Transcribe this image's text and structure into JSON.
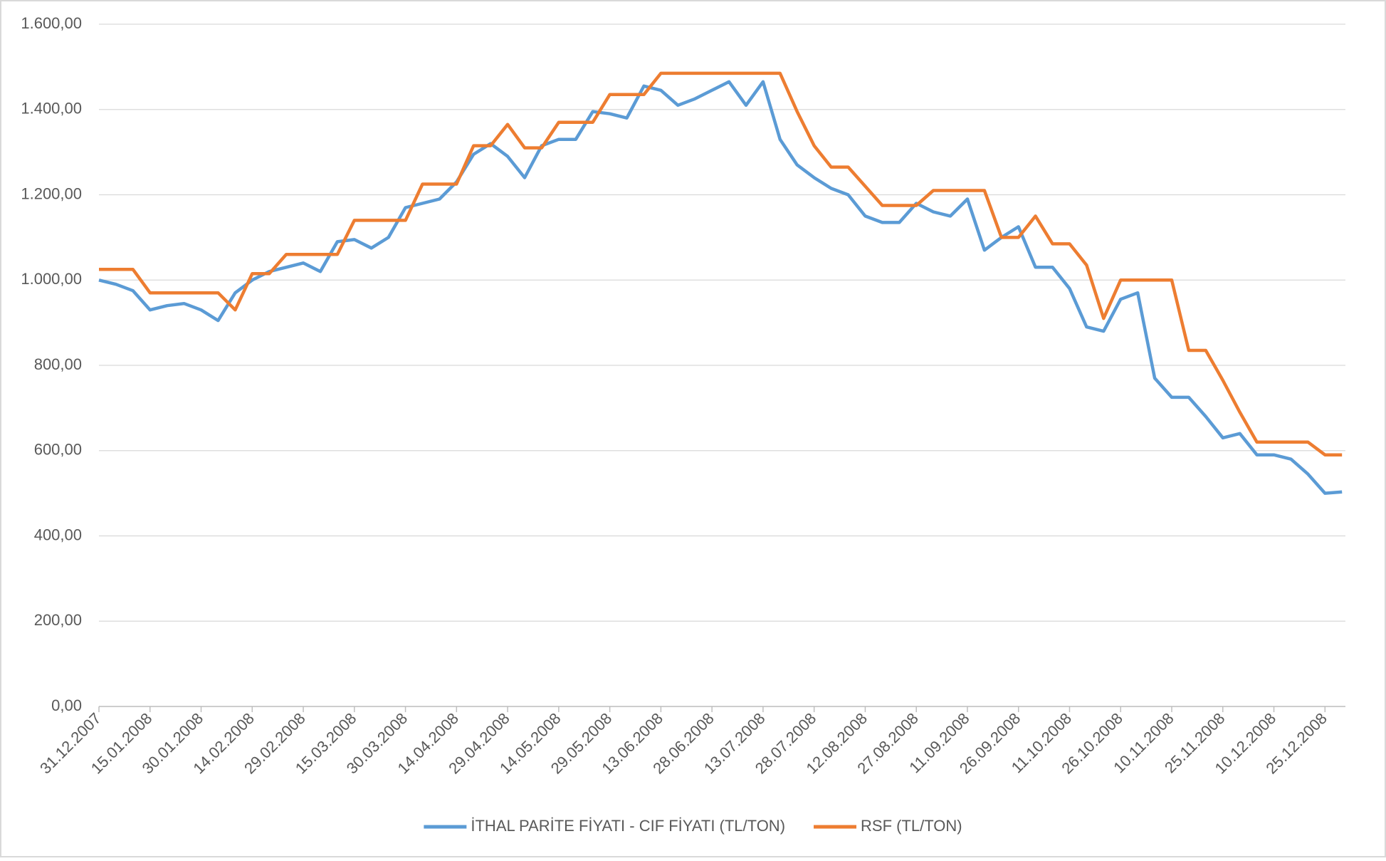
{
  "chart_data": {
    "type": "line",
    "x": [
      "31.12.2007",
      "05.01.2008",
      "10.01.2008",
      "15.01.2008",
      "20.01.2008",
      "25.01.2008",
      "30.01.2008",
      "04.02.2008",
      "09.02.2008",
      "14.02.2008",
      "19.02.2008",
      "24.02.2008",
      "29.02.2008",
      "05.03.2008",
      "10.03.2008",
      "15.03.2008",
      "20.03.2008",
      "25.03.2008",
      "30.03.2008",
      "04.04.2008",
      "09.04.2008",
      "14.04.2008",
      "19.04.2008",
      "24.04.2008",
      "29.04.2008",
      "04.05.2008",
      "09.05.2008",
      "14.05.2008",
      "19.05.2008",
      "24.05.2008",
      "29.05.2008",
      "03.06.2008",
      "08.06.2008",
      "13.06.2008",
      "18.06.2008",
      "23.06.2008",
      "28.06.2008",
      "03.07.2008",
      "08.07.2008",
      "13.07.2008",
      "18.07.2008",
      "23.07.2008",
      "28.07.2008",
      "02.08.2008",
      "07.08.2008",
      "12.08.2008",
      "17.08.2008",
      "22.08.2008",
      "27.08.2008",
      "01.09.2008",
      "06.09.2008",
      "11.09.2008",
      "16.09.2008",
      "21.09.2008",
      "26.09.2008",
      "01.10.2008",
      "06.10.2008",
      "11.10.2008",
      "16.10.2008",
      "21.10.2008",
      "26.10.2008",
      "31.10.2008",
      "05.11.2008",
      "10.11.2008",
      "15.11.2008",
      "20.11.2008",
      "25.11.2008",
      "30.11.2008",
      "05.12.2008",
      "10.12.2008",
      "15.12.2008",
      "20.12.2008",
      "25.12.2008",
      "30.12.2008"
    ],
    "series": [
      {
        "name": "İTHAL PARİTE FİYATI - CIF FİYATI (TL/TON)",
        "color": "#5b9bd5",
        "values": [
          1000,
          990,
          975,
          930,
          940,
          945,
          930,
          905,
          970,
          1000,
          1020,
          1030,
          1040,
          1020,
          1090,
          1095,
          1075,
          1100,
          1170,
          1180,
          1190,
          1230,
          1295,
          1320,
          1290,
          1240,
          1315,
          1330,
          1330,
          1395,
          1390,
          1380,
          1455,
          1445,
          1410,
          1425,
          1445,
          1465,
          1410,
          1465,
          1330,
          1270,
          1240,
          1215,
          1200,
          1150,
          1135,
          1135,
          1180,
          1160,
          1150,
          1190,
          1070,
          1100,
          1125,
          1030,
          1030,
          980,
          890,
          880,
          955,
          970,
          770,
          725,
          725,
          680,
          630,
          640,
          590,
          590,
          580,
          545,
          500,
          503
        ]
      },
      {
        "name": "RSF (TL/TON)",
        "color": "#ed7d31",
        "values": [
          1025,
          1025,
          1025,
          970,
          970,
          970,
          970,
          970,
          930,
          1015,
          1015,
          1060,
          1060,
          1060,
          1060,
          1140,
          1140,
          1140,
          1140,
          1225,
          1225,
          1225,
          1315,
          1315,
          1365,
          1310,
          1310,
          1370,
          1370,
          1370,
          1435,
          1435,
          1435,
          1485,
          1485,
          1485,
          1485,
          1485,
          1485,
          1485,
          1485,
          1395,
          1315,
          1265,
          1265,
          1220,
          1175,
          1175,
          1175,
          1210,
          1210,
          1210,
          1210,
          1100,
          1100,
          1150,
          1085,
          1085,
          1035,
          910,
          1000,
          1000,
          1000,
          1000,
          835,
          835,
          765,
          690,
          620,
          620,
          620,
          620,
          590,
          590
        ]
      }
    ],
    "xlim": [
      "31.12.2007",
      "31.12.2008"
    ],
    "xticks": [
      "31.12.2007",
      "15.01.2008",
      "30.01.2008",
      "14.02.2008",
      "29.02.2008",
      "15.03.2008",
      "30.03.2008",
      "14.04.2008",
      "29.04.2008",
      "14.05.2008",
      "29.05.2008",
      "13.06.2008",
      "28.06.2008",
      "13.07.2008",
      "28.07.2008",
      "12.08.2008",
      "27.08.2008",
      "11.09.2008",
      "26.09.2008",
      "11.10.2008",
      "26.10.2008",
      "10.11.2008",
      "25.11.2008",
      "10.12.2008",
      "25.12.2008"
    ],
    "ylim": [
      0,
      1600
    ],
    "yticks": [
      {
        "value": 0,
        "label": "0,00"
      },
      {
        "value": 200,
        "label": "200,00"
      },
      {
        "value": 400,
        "label": "400,00"
      },
      {
        "value": 600,
        "label": "600,00"
      },
      {
        "value": 800,
        "label": "800,00"
      },
      {
        "value": 1000,
        "label": "1.000,00"
      },
      {
        "value": 1200,
        "label": "1.200,00"
      },
      {
        "value": 1400,
        "label": "1.400,00"
      },
      {
        "value": 1600,
        "label": "1.600,00"
      }
    ],
    "grid": true,
    "legend": "bottom"
  }
}
